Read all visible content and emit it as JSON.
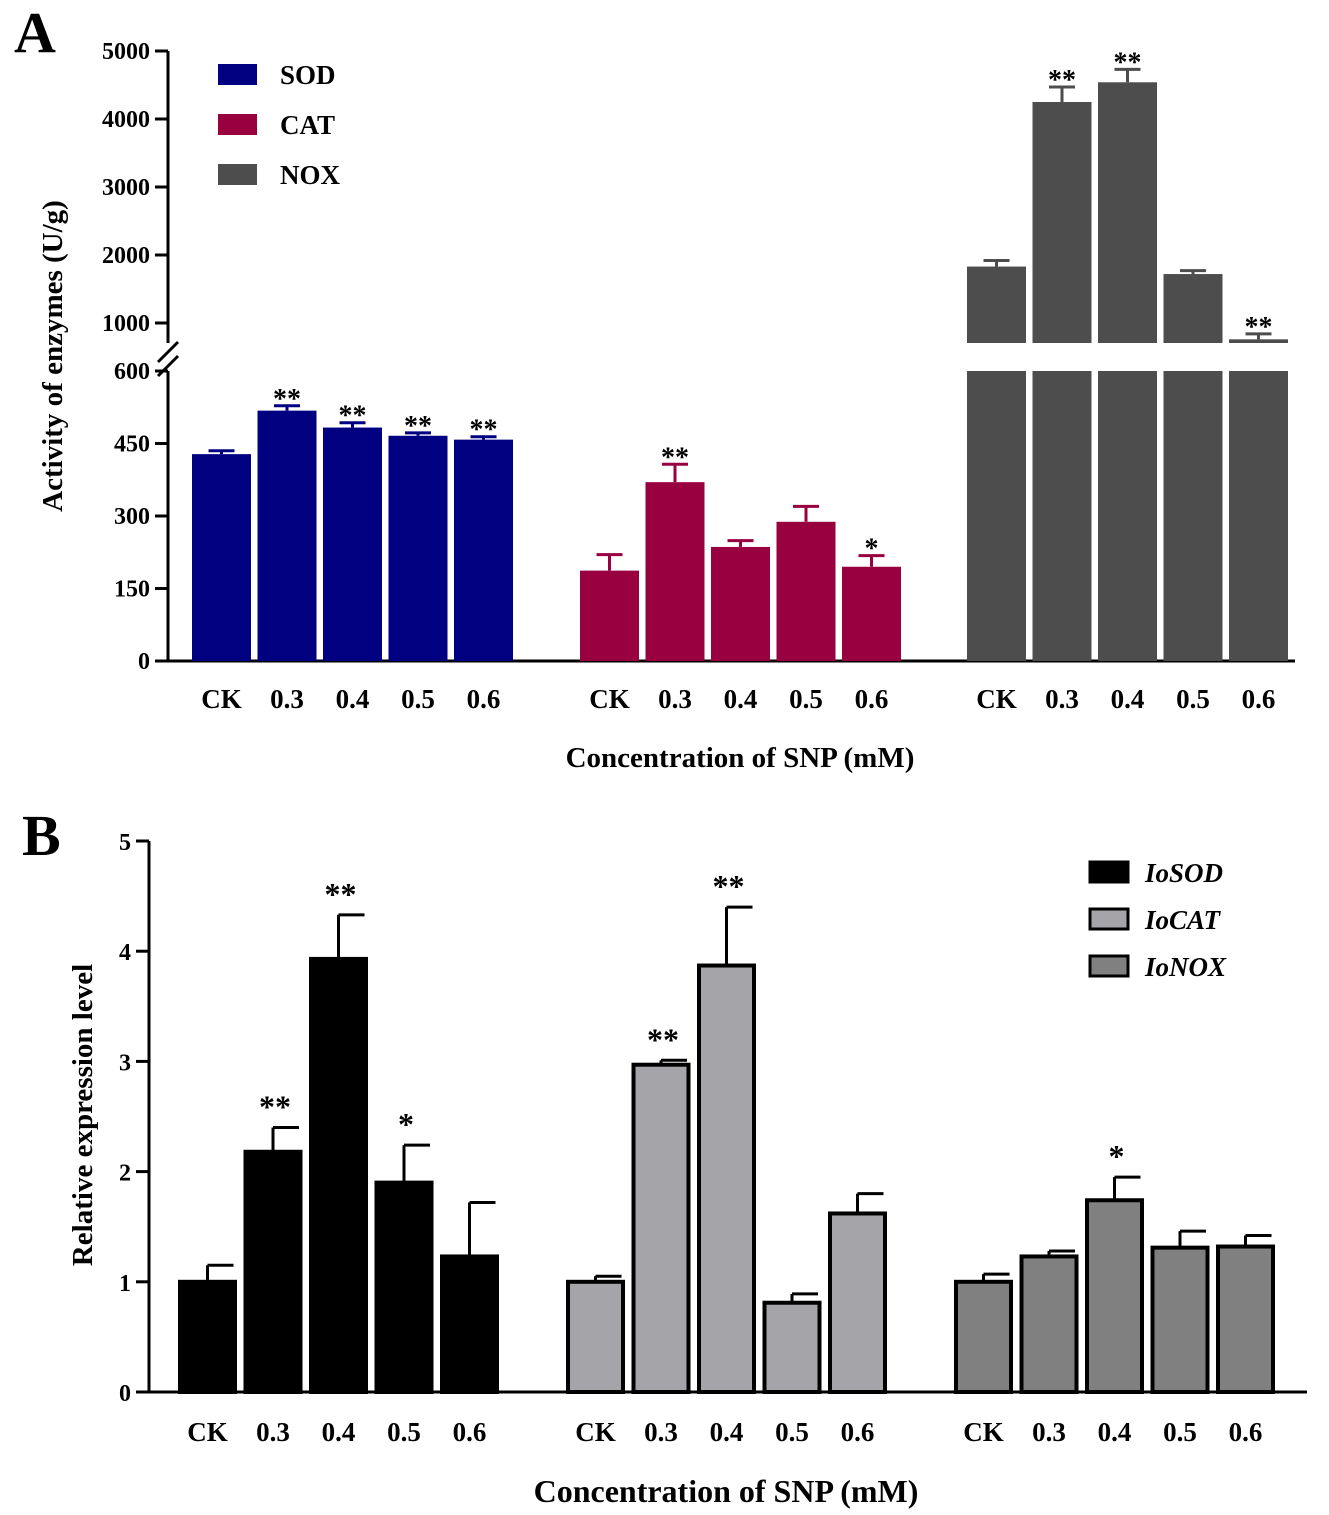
{
  "chart_data": [
    {
      "panel": "A",
      "type": "bar",
      "xlabel": "Concentration of SNP (mM)",
      "ylabel": "Activity of enzymes (U/g)",
      "categories": [
        "CK",
        "0.3",
        "0.4",
        "0.5",
        "0.6"
      ],
      "axis_break": {
        "lower_ylim": [
          0,
          600
        ],
        "upper_ylim": [
          670,
          5000
        ]
      },
      "lower_yticks": [
        "0",
        "150",
        "300",
        "450",
        "600"
      ],
      "upper_yticks": [
        "1000",
        "2000",
        "3000",
        "4000",
        "5000"
      ],
      "legend_position": "top-left",
      "series": [
        {
          "name": "SOD",
          "color": "#010080",
          "values": [
            428,
            518,
            483,
            466,
            458
          ],
          "errors": [
            7,
            10,
            10,
            6,
            6
          ],
          "significance": [
            "",
            "**",
            "**",
            "**",
            "**"
          ]
        },
        {
          "name": "CAT",
          "color": "#990040",
          "values": [
            187,
            370,
            236,
            288,
            195
          ],
          "errors": [
            33,
            37,
            13,
            32,
            23
          ],
          "significance": [
            "",
            "**",
            "",
            "",
            "*"
          ]
        },
        {
          "name": "NOX",
          "color": "#4d4d4d",
          "values": [
            1830,
            4250,
            4540,
            1720,
            760
          ],
          "errors": [
            90,
            220,
            190,
            50,
            80
          ],
          "significance": [
            "",
            "**",
            "**",
            "",
            "**"
          ]
        }
      ]
    },
    {
      "panel": "B",
      "type": "bar",
      "xlabel": "Concentration of SNP (mM)",
      "ylabel": "Relative expression level",
      "categories": [
        "CK",
        "0.3",
        "0.4",
        "0.5",
        "0.6"
      ],
      "ylim": [
        0,
        5
      ],
      "yticks": [
        "0",
        "1",
        "2",
        "3",
        "4",
        "5"
      ],
      "legend_position": "top-right",
      "series": [
        {
          "name": "IoSOD",
          "color": "#000000",
          "values": [
            1.0,
            2.18,
            3.93,
            1.9,
            1.23
          ],
          "errors": [
            0.15,
            0.22,
            0.4,
            0.34,
            0.49
          ],
          "significance": [
            "",
            "**",
            "**",
            "*",
            ""
          ]
        },
        {
          "name": "IoCAT",
          "color": "#a5a5a9",
          "values": [
            1.0,
            2.97,
            3.87,
            0.81,
            1.62
          ],
          "errors": [
            0.05,
            0.04,
            0.53,
            0.08,
            0.18
          ],
          "significance": [
            "",
            "**",
            "**",
            "",
            ""
          ]
        },
        {
          "name": "IoNOX",
          "color": "#808080",
          "values": [
            1.0,
            1.23,
            1.74,
            1.31,
            1.32
          ],
          "errors": [
            0.07,
            0.05,
            0.21,
            0.15,
            0.1
          ],
          "significance": [
            "",
            "",
            "*",
            "",
            ""
          ]
        }
      ]
    }
  ]
}
